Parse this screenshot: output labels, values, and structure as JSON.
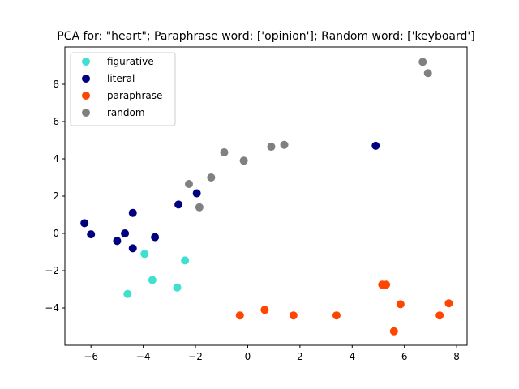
{
  "chart_data": {
    "type": "scatter",
    "title": "PCA for: \"heart\"; Paraphrase word: ['opinion']; Random word: ['keyboard']",
    "xlabel": "",
    "ylabel": "",
    "xlim": [
      -7,
      8.4
    ],
    "ylim": [
      -6,
      10
    ],
    "xticks": [
      -6,
      -4,
      -2,
      0,
      2,
      4,
      6,
      8
    ],
    "yticks": [
      -4,
      -2,
      0,
      2,
      4,
      6,
      8
    ],
    "xtick_labels": [
      "−6",
      "−4",
      "−2",
      "0",
      "2",
      "4",
      "6",
      "8"
    ],
    "ytick_labels": [
      "−4",
      "−2",
      "0",
      "2",
      "4",
      "6",
      "8"
    ],
    "grid": false,
    "legend_position": "top-left",
    "series": [
      {
        "name": "figurative",
        "color": "#40e0d0",
        "points": [
          [
            -3.95,
            -1.1
          ],
          [
            -3.65,
            -2.5
          ],
          [
            -2.4,
            -1.45
          ],
          [
            -2.7,
            -2.9
          ],
          [
            -4.6,
            -3.25
          ]
        ]
      },
      {
        "name": "literal",
        "color": "#000080",
        "points": [
          [
            -6.25,
            0.55
          ],
          [
            -6.0,
            -0.05
          ],
          [
            -5.0,
            -0.4
          ],
          [
            -4.7,
            0.0
          ],
          [
            -4.4,
            1.1
          ],
          [
            -4.4,
            -0.8
          ],
          [
            -3.55,
            -0.2
          ],
          [
            -2.65,
            1.55
          ],
          [
            -1.95,
            2.15
          ],
          [
            4.9,
            4.7
          ]
        ]
      },
      {
        "name": "paraphrase",
        "color": "#ff4500",
        "points": [
          [
            -0.3,
            -4.4
          ],
          [
            0.65,
            -4.1
          ],
          [
            1.75,
            -4.4
          ],
          [
            3.4,
            -4.4
          ],
          [
            5.15,
            -2.75
          ],
          [
            5.3,
            -2.75
          ],
          [
            5.85,
            -3.8
          ],
          [
            5.6,
            -5.25
          ],
          [
            7.35,
            -4.4
          ],
          [
            7.7,
            -3.75
          ]
        ]
      },
      {
        "name": "random",
        "color": "#808080",
        "points": [
          [
            -2.25,
            2.65
          ],
          [
            -1.85,
            1.4
          ],
          [
            -1.4,
            3.0
          ],
          [
            -0.9,
            4.35
          ],
          [
            -0.15,
            3.9
          ],
          [
            0.9,
            4.65
          ],
          [
            1.4,
            4.75
          ],
          [
            6.7,
            9.2
          ],
          [
            6.9,
            8.6
          ]
        ]
      }
    ]
  }
}
